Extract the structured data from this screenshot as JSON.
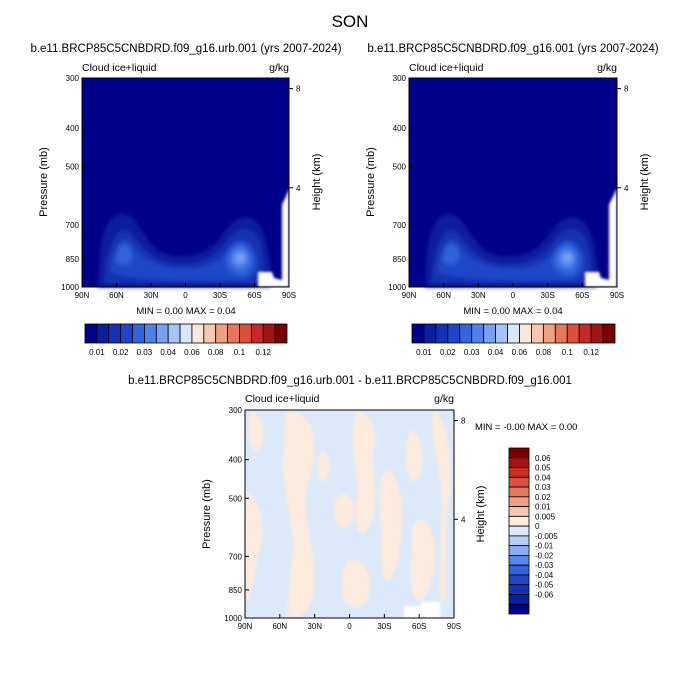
{
  "page": {
    "title": "SON"
  },
  "colors": {
    "abs_fill": [
      "#00008b",
      "#0a1ea0",
      "#1432b4",
      "#1e46c8",
      "#3264dc",
      "#5082ea",
      "#789ff0",
      "#a6c3f4",
      "#d7e6fa",
      "#fae6da",
      "#f6c8b0",
      "#f0a082",
      "#e6785a",
      "#dc503c",
      "#c82828",
      "#a01414",
      "#7a0000"
    ],
    "diff_fill": [
      "#00008b",
      "#0a1ea0",
      "#1432b4",
      "#1e46c8",
      "#3264dc",
      "#5a87ec",
      "#8aaef2",
      "#b6cdf7",
      "#dbe9fa",
      "#fdebdd",
      "#f6c8ad",
      "#f0a082",
      "#e6785a",
      "#dc503c",
      "#c83020",
      "#a01414",
      "#7a0000"
    ]
  },
  "chart_data": [
    {
      "type": "heatmap",
      "title": "b.e11.BRCP85C5CNBDRD.f09_g16.urb.001 (yrs 2007-2024)",
      "left_label": "Cloud ice+liquid",
      "right_label": "g/kg",
      "ylabel": "Pressure (mb)",
      "y2label": "Height (km)",
      "x_ticks": [
        "90N",
        "60N",
        "30N",
        "0",
        "30S",
        "60S",
        "90S"
      ],
      "y_ticks": [
        "300",
        "400",
        "500",
        "700",
        "850",
        "1000"
      ],
      "y_tick_values": [
        300,
        400,
        500,
        700,
        850,
        1000
      ],
      "y2_ticks": [
        "8",
        "4"
      ],
      "y2_tick_heights_km": [
        8,
        4
      ],
      "ylim": [
        1000,
        300
      ],
      "xlim": [
        90,
        -90
      ],
      "min_max_text": "MIN =   0.00  MAX =   0.04",
      "colorbar_labels": [
        "0.01",
        "0.02",
        "0.03",
        "0.04",
        "0.06",
        "0.08",
        "0.1",
        "0.12"
      ],
      "colorbar_levels": [
        0.01,
        0.015,
        0.02,
        0.025,
        0.03,
        0.035,
        0.04,
        0.05,
        0.06,
        0.07,
        0.08,
        0.09,
        0.1,
        0.11,
        0.12
      ]
    },
    {
      "type": "heatmap",
      "title": "b.e11.BRCP85C5CNBDRD.f09_g16.001 (yrs 2007-2024)",
      "left_label": "Cloud ice+liquid",
      "right_label": "g/kg",
      "ylabel": "Pressure (mb)",
      "y2label": "Height (km)",
      "x_ticks": [
        "90N",
        "60N",
        "30N",
        "0",
        "30S",
        "60S",
        "90S"
      ],
      "y_ticks": [
        "300",
        "400",
        "500",
        "700",
        "850",
        "1000"
      ],
      "y_tick_values": [
        300,
        400,
        500,
        700,
        850,
        1000
      ],
      "y2_ticks": [
        "8",
        "4"
      ],
      "y2_tick_heights_km": [
        8,
        4
      ],
      "ylim": [
        1000,
        300
      ],
      "xlim": [
        90,
        -90
      ],
      "min_max_text": "MIN =   0.00  MAX =   0.04",
      "colorbar_labels": [
        "0.01",
        "0.02",
        "0.03",
        "0.04",
        "0.06",
        "0.08",
        "0.1",
        "0.12"
      ],
      "colorbar_levels": [
        0.01,
        0.015,
        0.02,
        0.025,
        0.03,
        0.035,
        0.04,
        0.05,
        0.06,
        0.07,
        0.08,
        0.09,
        0.1,
        0.11,
        0.12
      ]
    },
    {
      "type": "heatmap",
      "title": "b.e11.BRCP85C5CNBDRD.f09_g16.urb.001 - b.e11.BRCP85C5CNBDRD.f09_g16.001",
      "left_label": "Cloud ice+liquid",
      "right_label": "g/kg",
      "ylabel": "Pressure (mb)",
      "y2label": "Height (km)",
      "x_ticks": [
        "90N",
        "60N",
        "30N",
        "0",
        "30S",
        "60S",
        "90S"
      ],
      "y_ticks": [
        "300",
        "400",
        "500",
        "700",
        "850",
        "1000"
      ],
      "y_tick_values": [
        300,
        400,
        500,
        700,
        850,
        1000
      ],
      "y2_ticks": [
        "8",
        "4"
      ],
      "y2_tick_heights_km": [
        8,
        4
      ],
      "ylim": [
        1000,
        300
      ],
      "xlim": [
        90,
        -90
      ],
      "min_max_text": "MIN =  -0.00  MAX =   0.00",
      "colorbar_labels": [
        "0.06",
        "0.05",
        "0.04",
        "0.03",
        "0.02",
        "0.01",
        "0.005",
        "0",
        "-0.005",
        "-0.01",
        "-0.02",
        "-0.03",
        "-0.04",
        "-0.05",
        "-0.06"
      ],
      "colorbar_levels": [
        0.06,
        0.05,
        0.04,
        0.03,
        0.02,
        0.01,
        0.005,
        0,
        -0.005,
        -0.01,
        -0.02,
        -0.03,
        -0.04,
        -0.05,
        -0.06
      ]
    }
  ]
}
